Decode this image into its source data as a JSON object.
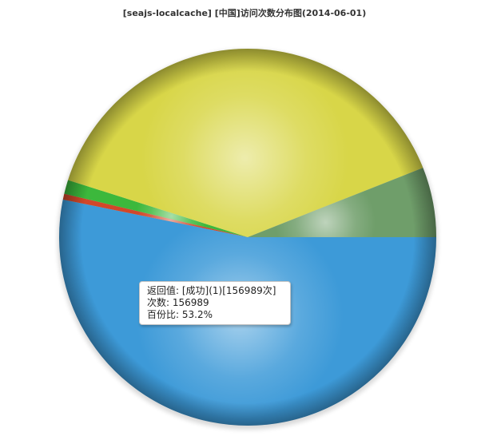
{
  "chart_data": {
    "type": "pie",
    "title": "[seajs-localcache] [中国]访问次数分布图(2014-06-01)",
    "slices": [
      {
        "value": 53.2,
        "color": "#3d9ad8"
      },
      {
        "value": 0.5,
        "color": "#d1472a"
      },
      {
        "value": 1.2,
        "color": "#3cb83c"
      },
      {
        "value": 39.1,
        "color": "#d8d648"
      },
      {
        "value": 6.0,
        "color": "#6f9e6a"
      }
    ]
  },
  "tooltip": {
    "line1": "返回值: [成功](1)[156989次]",
    "line2": "次数: 156989",
    "line3": "百份比: 53.2%"
  }
}
